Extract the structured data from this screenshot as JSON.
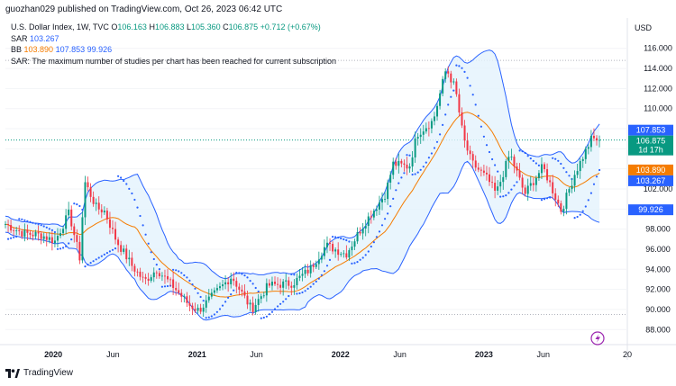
{
  "header": {
    "published_by": "guozhan029 published on TradingView.com, Oct 26, 2023 06:42 UTC",
    "symbol_line": "U.S. Dollar Index, 1W, TVC",
    "ohlc": {
      "o_label": "O",
      "o": "106.163",
      "h_label": "H",
      "h": "106.883",
      "l_label": "L",
      "l": "105.360",
      "c_label": "C",
      "c": "106.875",
      "change": "+0.712 (+0.67%)"
    },
    "sar_label": "SAR",
    "sar_value": "103.267",
    "bb_label": "BB",
    "bb_basis": "103.890",
    "bb_upper": "107.853",
    "bb_lower": "99.926",
    "notice": "SAR: The maximum number of studies per chart has been reached for current subscription",
    "currency": "USD"
  },
  "footer": {
    "brand": "TradingView"
  },
  "colors": {
    "up": "#089981",
    "down": "#f23645",
    "basis": "#f57c00",
    "band": "#2962ff",
    "band_fill": "#e3f2fd",
    "sar": "#2962ff"
  },
  "chart_data": {
    "type": "candlestick",
    "symbol": "U.S. Dollar Index",
    "interval": "1W",
    "y_range": [
      86.5,
      117.5
    ],
    "y_ticks": [
      88,
      90,
      92,
      94,
      96,
      98,
      100,
      102,
      104,
      106,
      108,
      110,
      112,
      114,
      116
    ],
    "y_tick_labels": [
      "88.000",
      "90.000",
      "92.000",
      "94.000",
      "96.000",
      "98.000",
      "100.000",
      "102.000",
      "104.000",
      "106.000",
      "108.000",
      "110.000",
      "112.000",
      "114.000",
      "116.000"
    ],
    "x_labels": [
      {
        "label": "2020",
        "date": "2020-01-01"
      },
      {
        "label": "Jun",
        "date": "2020-06-01"
      },
      {
        "label": "2021",
        "date": "2021-01-01"
      },
      {
        "label": "Jun",
        "date": "2021-06-01"
      },
      {
        "label": "2022",
        "date": "2022-01-01"
      },
      {
        "label": "Jun",
        "date": "2022-06-01"
      },
      {
        "label": "2023",
        "date": "2023-01-01"
      },
      {
        "label": "Jun",
        "date": "2023-06-01"
      },
      {
        "label": "20",
        "date": "2024-01-01"
      }
    ],
    "date_range": [
      "2019-09-01",
      "2024-01-01"
    ],
    "close_anchors": [
      {
        "date": "2019-09-01",
        "close": 98.5
      },
      {
        "date": "2019-10-15",
        "close": 97.6
      },
      {
        "date": "2019-12-01",
        "close": 97.4
      },
      {
        "date": "2020-01-05",
        "close": 96.8
      },
      {
        "date": "2020-02-10",
        "close": 99.6
      },
      {
        "date": "2020-03-09",
        "close": 95.0
      },
      {
        "date": "2020-03-20",
        "close": 102.8
      },
      {
        "date": "2020-04-20",
        "close": 100.1
      },
      {
        "date": "2020-05-10",
        "close": 99.8
      },
      {
        "date": "2020-06-10",
        "close": 96.8
      },
      {
        "date": "2020-07-20",
        "close": 94.3
      },
      {
        "date": "2020-08-20",
        "close": 92.8
      },
      {
        "date": "2020-09-20",
        "close": 94.0
      },
      {
        "date": "2020-11-01",
        "close": 92.3
      },
      {
        "date": "2020-12-10",
        "close": 90.5
      },
      {
        "date": "2021-01-05",
        "close": 89.9
      },
      {
        "date": "2021-02-01",
        "close": 91.0
      },
      {
        "date": "2021-03-30",
        "close": 93.3
      },
      {
        "date": "2021-05-20",
        "close": 90.0
      },
      {
        "date": "2021-07-01",
        "close": 92.4
      },
      {
        "date": "2021-09-01",
        "close": 92.6
      },
      {
        "date": "2021-10-15",
        "close": 94.0
      },
      {
        "date": "2021-11-25",
        "close": 96.4
      },
      {
        "date": "2022-01-15",
        "close": 95.5
      },
      {
        "date": "2022-03-01",
        "close": 98.5
      },
      {
        "date": "2022-04-25",
        "close": 101.5
      },
      {
        "date": "2022-05-15",
        "close": 104.5
      },
      {
        "date": "2022-06-25",
        "close": 104.2
      },
      {
        "date": "2022-07-15",
        "close": 107.5
      },
      {
        "date": "2022-08-25",
        "close": 108.8
      },
      {
        "date": "2022-09-27",
        "close": 114.0
      },
      {
        "date": "2022-10-20",
        "close": 112.0
      },
      {
        "date": "2022-11-10",
        "close": 107.0
      },
      {
        "date": "2022-12-01",
        "close": 104.6
      },
      {
        "date": "2023-01-10",
        "close": 103.0
      },
      {
        "date": "2023-02-01",
        "close": 101.5
      },
      {
        "date": "2023-03-08",
        "close": 105.5
      },
      {
        "date": "2023-04-15",
        "close": 101.5
      },
      {
        "date": "2023-05-31",
        "close": 104.2
      },
      {
        "date": "2023-07-17",
        "close": 99.8
      },
      {
        "date": "2023-08-20",
        "close": 103.5
      },
      {
        "date": "2023-10-02",
        "close": 107.0
      },
      {
        "date": "2023-10-23",
        "close": 106.875
      }
    ],
    "dotted_levels": [
      114.8,
      89.5
    ],
    "last_close": 106.875,
    "price_tags": [
      {
        "text": "107.853",
        "value": 107.853,
        "color": "#2962ff"
      },
      {
        "text": "106.875",
        "sub": "1d 17h",
        "value": 106.875,
        "color": "#089981"
      },
      {
        "text": "103.890",
        "value": 103.89,
        "color": "#f57c00"
      },
      {
        "text": "103.267",
        "value": 103.267,
        "color": "#2962ff"
      },
      {
        "text": "99.926",
        "value": 99.926,
        "color": "#2962ff"
      }
    ]
  }
}
